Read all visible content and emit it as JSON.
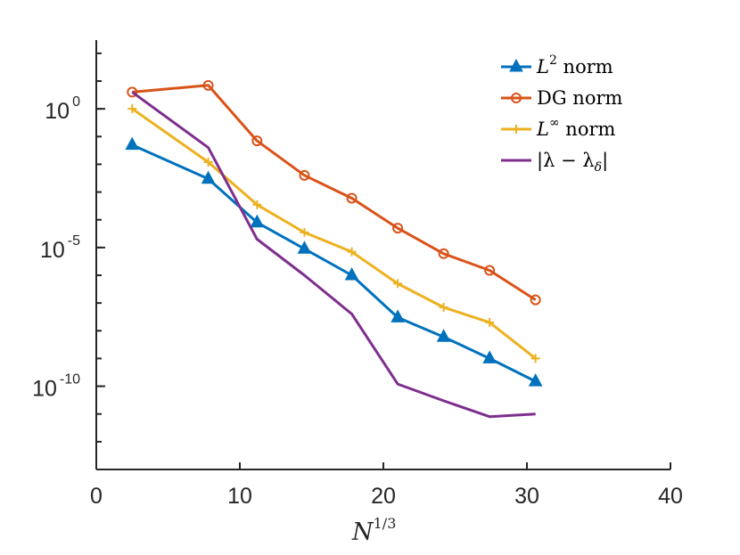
{
  "chart_data": {
    "type": "line",
    "xlabel": "N^1/3",
    "xlabel_base": "N",
    "xlabel_exp": "1/3",
    "xlim": [
      0,
      40
    ],
    "x_ticks": [
      {
        "value": 0,
        "label": "0"
      },
      {
        "value": 10,
        "label": "10"
      },
      {
        "value": 20,
        "label": "20"
      },
      {
        "value": 30,
        "label": "30"
      },
      {
        "value": 40,
        "label": "40"
      }
    ],
    "yscale": "log",
    "ylim": [
      1e-13,
      300.0
    ],
    "y_ticks": [
      {
        "value": 1,
        "base": "10",
        "exp": "0"
      },
      {
        "value": 1e-05,
        "base": "10",
        "exp": "-5"
      },
      {
        "value": 1e-10,
        "base": "10",
        "exp": "-10"
      }
    ],
    "grid": false,
    "legend_position": "top-right",
    "x": [
      2.5,
      7.8,
      11.2,
      14.5,
      17.8,
      21.0,
      24.2,
      27.4,
      30.6
    ],
    "series": [
      {
        "name": "L^2 norm",
        "label_main": "L",
        "label_sup": "2",
        "label_rest": " norm",
        "color": "#0072BD",
        "marker": "triangle",
        "values": [
          0.05,
          0.003,
          8e-05,
          9e-06,
          1e-06,
          3e-08,
          6e-09,
          1e-09,
          1.5e-10
        ]
      },
      {
        "name": "DG norm",
        "label_main": "DG norm",
        "label_sup": "",
        "label_rest": "",
        "color": "#D95319",
        "marker": "circle",
        "values": [
          4,
          7,
          0.07,
          0.004,
          0.0006,
          5e-05,
          6e-06,
          1.5e-06,
          1.3e-07
        ]
      },
      {
        "name": "L^∞ norm",
        "label_main": "L",
        "label_sup": "∞",
        "label_rest": " norm",
        "color": "#EDB120",
        "marker": "plus",
        "values": [
          1,
          0.012,
          0.00035,
          3.5e-05,
          7e-06,
          5e-07,
          7e-08,
          2e-08,
          1e-09
        ]
      },
      {
        "name": "|λ − λδ|",
        "label_main": "|λ − λ",
        "label_sub": "δ",
        "label_rest": "|",
        "color": "#7E2F8E",
        "marker": "none",
        "values": [
          4,
          0.04,
          2e-05,
          1e-06,
          4e-08,
          1.2e-10,
          3e-11,
          8e-12,
          1e-11
        ]
      }
    ]
  }
}
